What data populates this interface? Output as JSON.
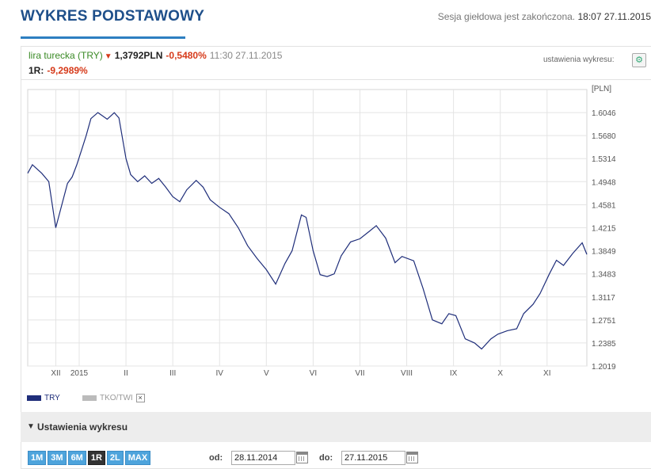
{
  "header": {
    "title": "WYKRES PODSTAWOWY",
    "session_text": "Sesja giełdowa jest zakończona.",
    "session_time": "18:07 27.11.2015"
  },
  "quote": {
    "asset": "lira turecka (TRY)",
    "direction_icon": "arrow-down-icon",
    "price": "1,3792PLN",
    "change": "-0,5480%",
    "timestamp": "11:30 27.11.2015",
    "period_label": "1R:",
    "period_change": "-9,2989%"
  },
  "chart_settings_link": "ustawienia wykresu:",
  "legend": {
    "primary": "TRY",
    "secondary": "TKO/TWI",
    "remove": "×"
  },
  "settings_panel": {
    "label": "Ustawienia wykresu"
  },
  "ranges": [
    {
      "label": "1M",
      "active": false
    },
    {
      "label": "3M",
      "active": false
    },
    {
      "label": "6M",
      "active": false
    },
    {
      "label": "1R",
      "active": true
    },
    {
      "label": "2L",
      "active": false
    },
    {
      "label": "MAX",
      "active": false
    }
  ],
  "dates": {
    "from_label": "od:",
    "from_value": "28.11.2014",
    "to_label": "do:",
    "to_value": "27.11.2015"
  },
  "colors": {
    "line": "#1f2e7a",
    "down": "#d63a1a",
    "up_asset": "#3a8a26",
    "accent": "#2d7fc1"
  },
  "chart_data": {
    "type": "line",
    "title": "",
    "xlabel": "",
    "ylabel": "[PLN]",
    "ylim": [
      1.2019,
      1.6412
    ],
    "yticks": [
      "1.6046",
      "1.5680",
      "1.5314",
      "1.4948",
      "1.4581",
      "1.4215",
      "1.3849",
      "1.3483",
      "1.3117",
      "1.2751",
      "1.2385",
      "1.2019"
    ],
    "xticks": [
      "XII",
      "2015",
      "II",
      "III",
      "IV",
      "V",
      "VI",
      "VII",
      "VIII",
      "IX",
      "X",
      "XI"
    ],
    "xtick_positions": [
      0.5,
      1.0,
      2.0,
      3.0,
      4.0,
      5.0,
      6.0,
      7.0,
      8.0,
      9.0,
      10.0,
      11.0
    ],
    "x_unit": "months since 2014-12-01",
    "series": [
      {
        "name": "TRY",
        "x": [
          -0.1,
          0.0,
          0.2,
          0.35,
          0.5,
          0.75,
          0.85,
          0.95,
          1.05,
          1.15,
          1.25,
          1.4,
          1.6,
          1.75,
          1.85,
          2.0,
          2.1,
          2.25,
          2.4,
          2.55,
          2.7,
          2.85,
          3.0,
          3.15,
          3.3,
          3.5,
          3.65,
          3.8,
          4.0,
          4.2,
          4.4,
          4.6,
          4.8,
          5.0,
          5.2,
          5.4,
          5.55,
          5.75,
          5.85,
          6.0,
          6.15,
          6.3,
          6.45,
          6.6,
          6.8,
          7.0,
          7.2,
          7.35,
          7.55,
          7.75,
          7.9,
          8.15,
          8.35,
          8.55,
          8.75,
          8.9,
          9.05,
          9.25,
          9.45,
          9.6,
          9.8,
          9.95,
          10.15,
          10.35,
          10.5,
          10.7,
          10.85,
          11.05,
          11.2,
          11.35,
          11.55,
          11.75,
          11.85
        ],
        "values": [
          1.5082,
          1.5217,
          1.5082,
          1.4948,
          1.4215,
          1.492,
          1.5022,
          1.5217,
          1.5447,
          1.568,
          1.595,
          1.6046,
          1.594,
          1.6044,
          1.596,
          1.5314,
          1.506,
          1.4948,
          1.504,
          1.492,
          1.5,
          1.486,
          1.471,
          1.463,
          1.482,
          1.4968,
          1.486,
          1.466,
          1.454,
          1.444,
          1.4215,
          1.393,
          1.373,
          1.3549,
          1.332,
          1.365,
          1.3849,
          1.442,
          1.438,
          1.3849,
          1.347,
          1.344,
          1.3483,
          1.377,
          1.399,
          1.404,
          1.4159,
          1.425,
          1.405,
          1.366,
          1.376,
          1.369,
          1.325,
          1.2751,
          1.269,
          1.2851,
          1.282,
          1.2451,
          1.2385,
          1.229,
          1.2451,
          1.2525,
          1.258,
          1.261,
          1.2851,
          1.3,
          1.317,
          1.3483,
          1.37,
          1.3617,
          1.381,
          1.3976,
          1.3792
        ]
      }
    ],
    "legend_position": "bottom-left",
    "grid": true
  }
}
